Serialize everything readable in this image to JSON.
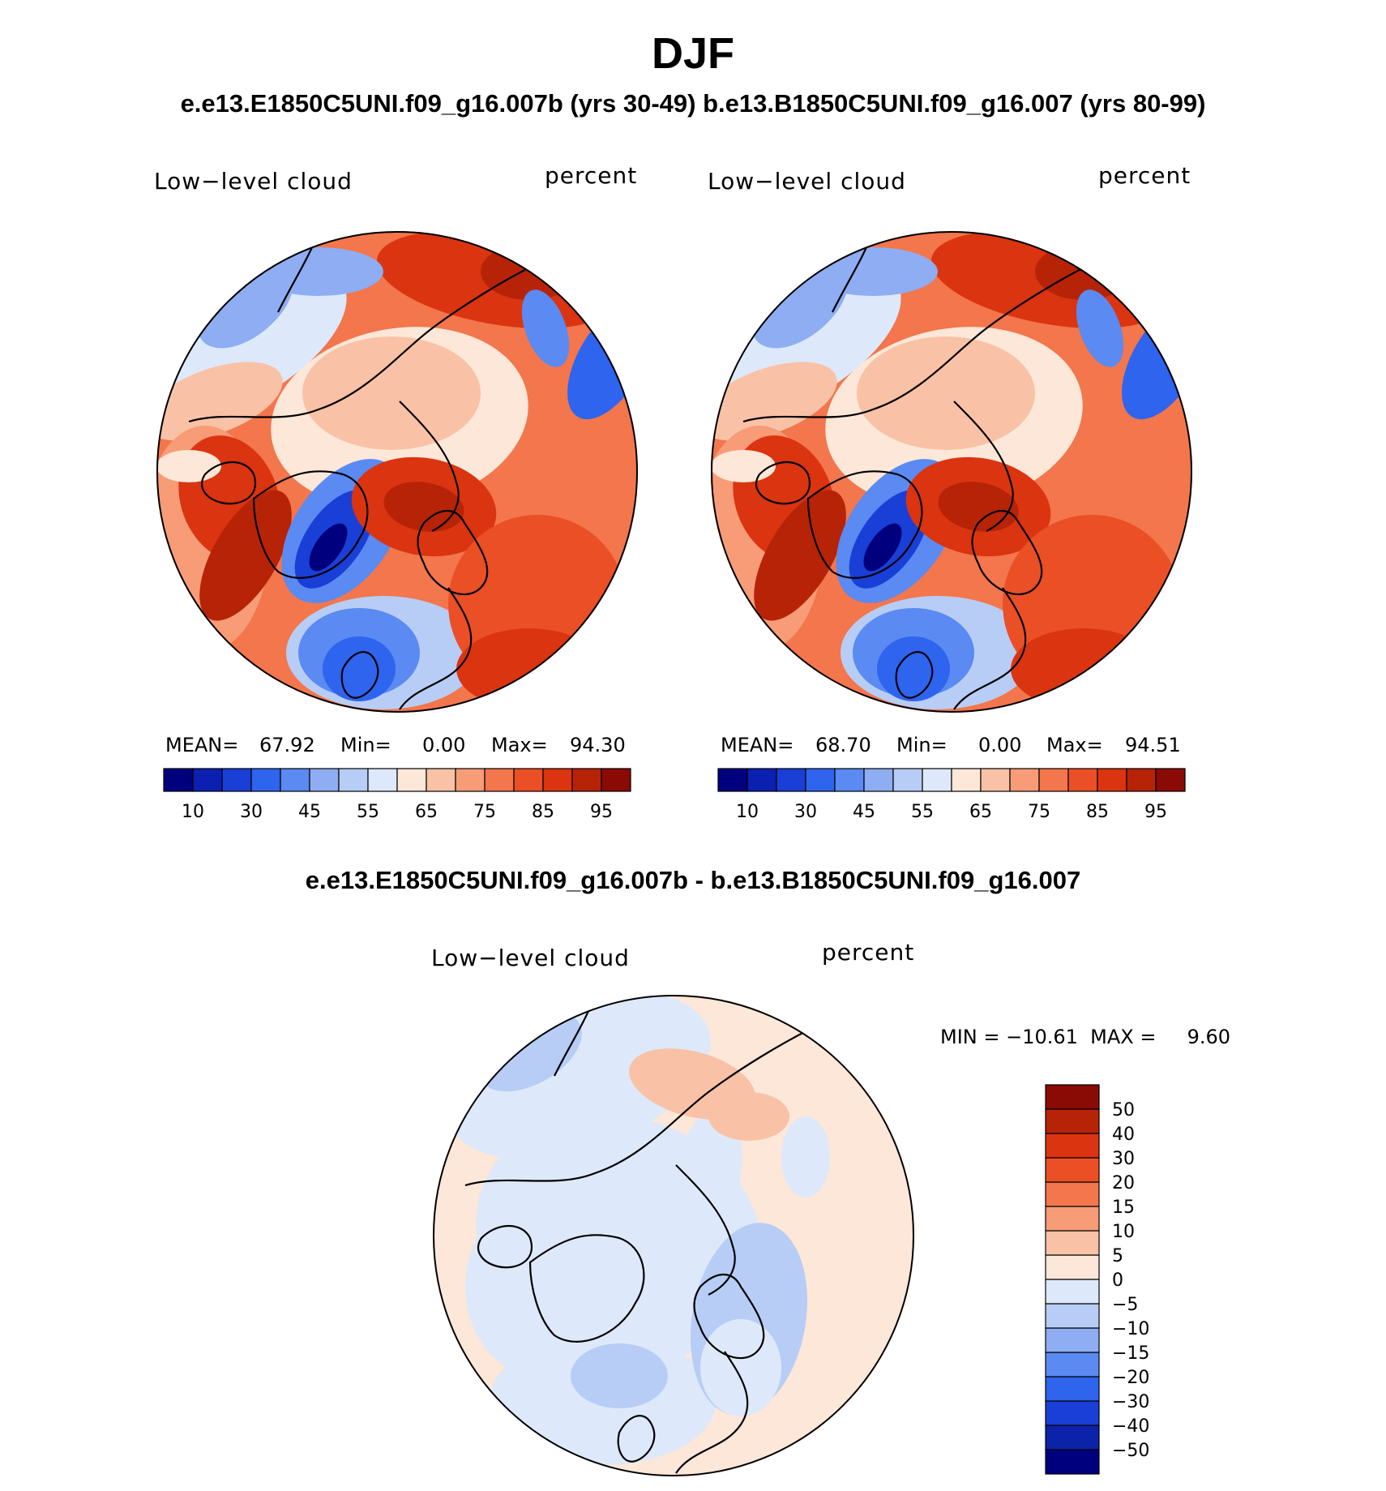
{
  "figure": {
    "season": "DJF",
    "subtitle_top": "e.e13.E1850C5UNI.f09_g16.007b (yrs 30-49)  b.e13.B1850C5UNI.f09_g16.007 (yrs 80-99)",
    "subtitle_diff": "e.e13.E1850C5UNI.f09_g16.007b - b.e13.B1850C5UNI.f09_g16.007"
  },
  "colors": {
    "abs_palette": [
      "#00007f",
      "#0b1fb0",
      "#1a3fd6",
      "#2e64ee",
      "#5a8af2",
      "#8eadf2",
      "#b7cdf5",
      "#dde9fa",
      "#fde7d8",
      "#f9c2a6",
      "#f79c77",
      "#f3764c",
      "#ea4f26",
      "#db3410",
      "#b72307",
      "#8a0a05"
    ],
    "diff_palette": [
      "#00007f",
      "#0c22a8",
      "#1a3fd6",
      "#2e64ee",
      "#5a8af2",
      "#8eadf2",
      "#b7cdf5",
      "#dde9fa",
      "#fde7d8",
      "#f9c2a6",
      "#f79c77",
      "#f3764c",
      "#ea4f26",
      "#db3410",
      "#b72307",
      "#8a0a05"
    ]
  },
  "chart_data": [
    {
      "type": "heatmap",
      "projection": "north polar stereographic",
      "name": "e.e13.E1850C5UNI.f09_g16.007b (yrs 30-49)",
      "left_label": "Low−level cloud",
      "right_label": "percent",
      "mean_label": "MEAN=",
      "mean": "67.92",
      "min_label": "Min=",
      "min": "0.00",
      "max_label": "Max=",
      "max": "94.30",
      "colorbar_ticks": [
        "10",
        "30",
        "45",
        "55",
        "65",
        "75",
        "85",
        "95"
      ],
      "levels": [
        5,
        10,
        20,
        30,
        40,
        45,
        50,
        55,
        60,
        65,
        70,
        75,
        80,
        85,
        90,
        95
      ]
    },
    {
      "type": "heatmap",
      "projection": "north polar stereographic",
      "name": "b.e13.B1850C5UNI.f09_g16.007 (yrs 80-99)",
      "left_label": "Low−level cloud",
      "right_label": "percent",
      "mean_label": "MEAN=",
      "mean": "68.70",
      "min_label": "Min=",
      "min": "0.00",
      "max_label": "Max=",
      "max": "94.51",
      "colorbar_ticks": [
        "10",
        "30",
        "45",
        "55",
        "65",
        "75",
        "85",
        "95"
      ],
      "levels": [
        5,
        10,
        20,
        30,
        40,
        45,
        50,
        55,
        60,
        65,
        70,
        75,
        80,
        85,
        90,
        95
      ]
    },
    {
      "type": "heatmap",
      "projection": "north polar stereographic",
      "name": "difference",
      "left_label": "Low−level cloud",
      "right_label": "percent",
      "range_text": "MIN = −10.61  MAX =     9.60",
      "min": "−10.61",
      "max": "9.60",
      "colorbar_ticks": [
        "50",
        "40",
        "30",
        "20",
        "15",
        "10",
        "5",
        "0",
        "−5",
        "−10",
        "−15",
        "−20",
        "−30",
        "−40",
        "−50"
      ]
    }
  ]
}
